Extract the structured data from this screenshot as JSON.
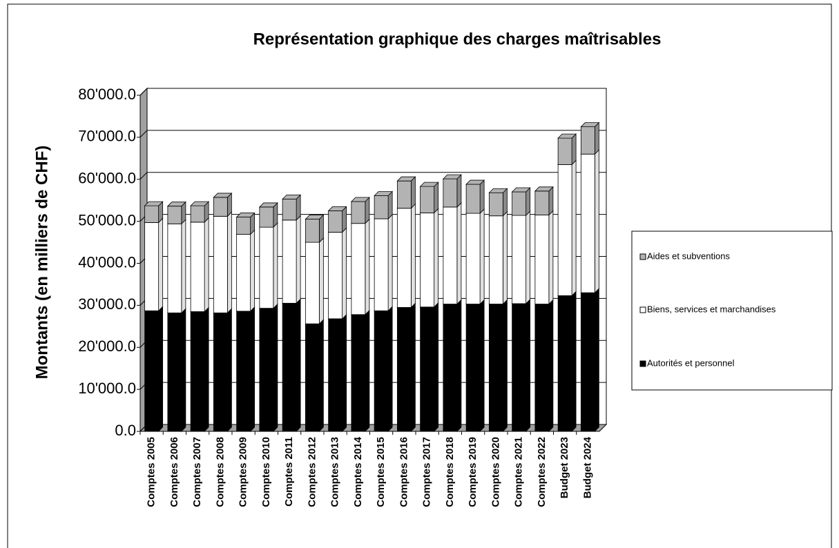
{
  "chart_data": {
    "type": "bar",
    "stacked": true,
    "title": "Représentation graphique des charges maîtrisables",
    "y_label": "Montants (en milliers de CHF)",
    "categories": [
      "Comptes 2005",
      "Comptes 2006",
      "Comptes 2007",
      "Comptes 2008",
      "Comptes 2009",
      "Comptes 2010",
      "Comptes 2011",
      "Comptes 2012",
      "Comptes 2013",
      "Comptes 2014",
      "Comptes 2015",
      "Comptes 2016",
      "Comptes 2017",
      "Comptes 2018",
      "Comptes 2019",
      "Comptes 2020",
      "Comptes 2021",
      "Comptes 2022",
      "Budget 2023",
      "Budget 2024"
    ],
    "series": [
      {
        "name": "Autorités et personnel",
        "color": "#000000",
        "values": [
          28700,
          28200,
          28500,
          28200,
          28600,
          29300,
          30500,
          25600,
          26800,
          27800,
          28700,
          29500,
          29600,
          30300,
          30300,
          30300,
          30400,
          30300,
          32300,
          33000
        ]
      },
      {
        "name": "Biens, services et marchandises",
        "color": "#ffffff",
        "values": [
          21000,
          21200,
          21300,
          23000,
          18300,
          19300,
          19800,
          19400,
          20600,
          21700,
          21900,
          23600,
          22400,
          23100,
          21600,
          21000,
          21000,
          21200,
          31200,
          33000
        ]
      },
      {
        "name": "Aides et subventions",
        "color": "#b3b3b3",
        "values": [
          4000,
          4200,
          3900,
          4500,
          4100,
          4800,
          5000,
          5500,
          5100,
          5200,
          5500,
          6500,
          6300,
          6700,
          6900,
          5500,
          5600,
          5700,
          6300,
          6500
        ]
      }
    ],
    "ylim": [
      0,
      80000
    ],
    "yticks": [
      {
        "value": 0,
        "label": "0.0"
      },
      {
        "value": 10000,
        "label": "10'000.0"
      },
      {
        "value": 20000,
        "label": "20'000.0"
      },
      {
        "value": 30000,
        "label": "30'000.0"
      },
      {
        "value": 40000,
        "label": "40'000.0"
      },
      {
        "value": 50000,
        "label": "50'000.0"
      },
      {
        "value": 60000,
        "label": "60'000.0"
      },
      {
        "value": 70000,
        "label": "70'000.0"
      },
      {
        "value": 80000,
        "label": "80'000.0"
      }
    ],
    "grid": true,
    "legend": "right"
  }
}
